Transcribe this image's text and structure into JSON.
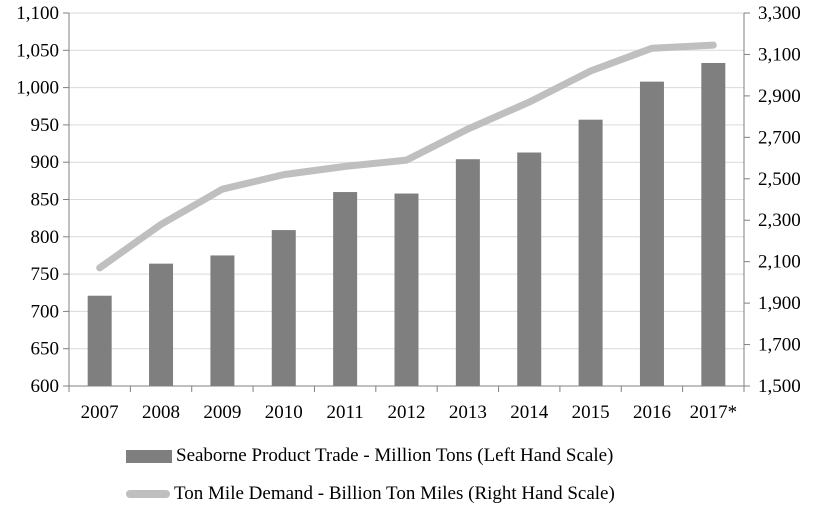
{
  "chart_data": {
    "type": "bar+line",
    "categories": [
      "2007",
      "2008",
      "2009",
      "2010",
      "2011",
      "2012",
      "2013",
      "2014",
      "2015",
      "2016",
      "2017*"
    ],
    "series": [
      {
        "name": "Seaborne Product Trade - Million Tons (Left Hand Scale)",
        "type": "bar",
        "axis": "left",
        "values": [
          721,
          764,
          775,
          809,
          860,
          858,
          904,
          913,
          957,
          1008,
          1033
        ]
      },
      {
        "name": "Ton Mile Demand - Billion Ton Miles (Right Hand Scale)",
        "type": "line",
        "axis": "right",
        "values": [
          2070,
          2280,
          2450,
          2520,
          2560,
          2590,
          2740,
          2870,
          3020,
          3130,
          3145
        ]
      }
    ],
    "y_left": {
      "min": 600,
      "max": 1100,
      "ticks": [
        "600",
        "650",
        "700",
        "750",
        "800",
        "850",
        "900",
        "950",
        "1,000",
        "1,050",
        "1,100"
      ]
    },
    "y_right": {
      "min": 1500,
      "max": 3300,
      "ticks": [
        "1,500",
        "1,700",
        "1,900",
        "2,100",
        "2,300",
        "2,500",
        "2,700",
        "2,900",
        "3,100",
        "3,300"
      ]
    },
    "colors": {
      "bar": "#7f7f7f",
      "line": "#bfbfbf",
      "axis": "#808080",
      "grid": "#d9d9d9"
    },
    "grid": true,
    "legend_position": "bottom"
  }
}
